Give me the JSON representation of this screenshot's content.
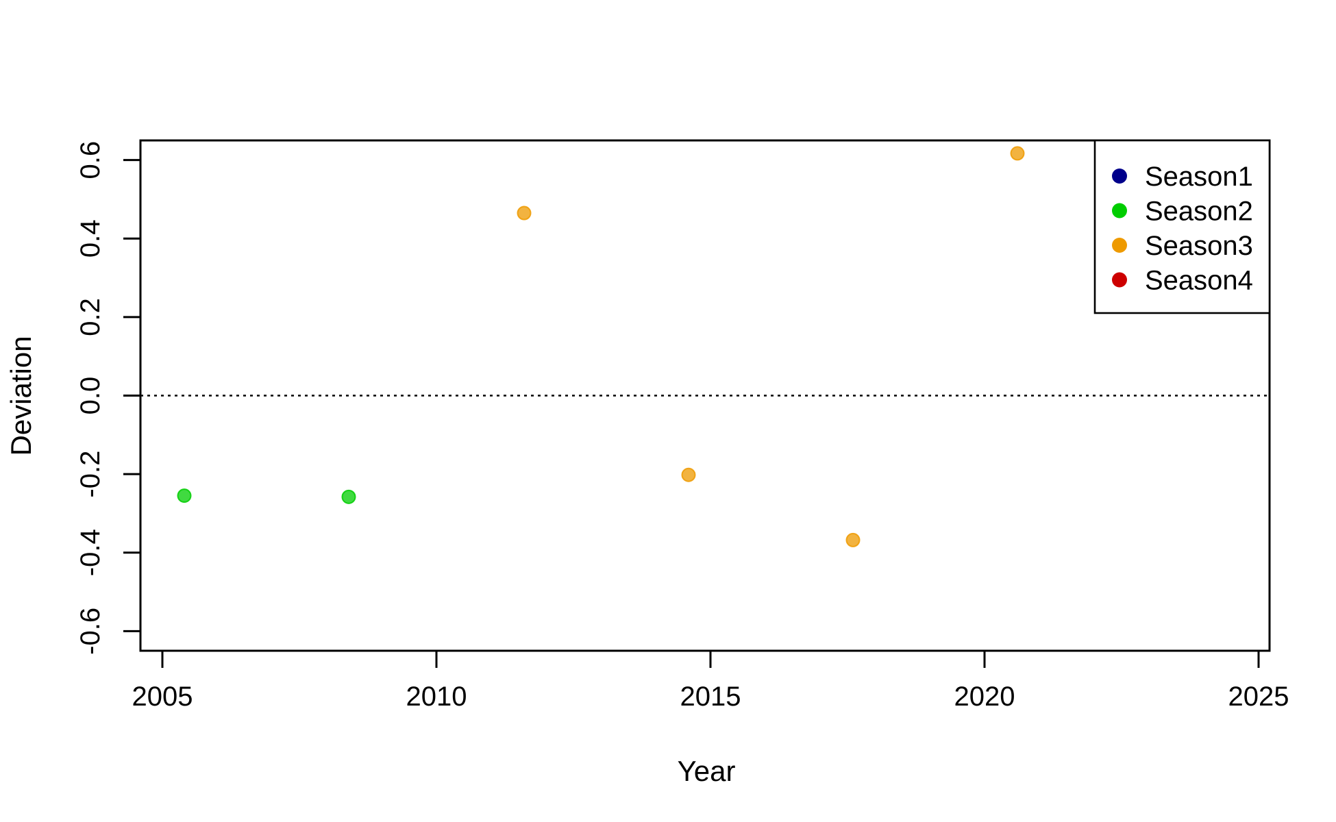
{
  "chart_data": {
    "type": "scatter",
    "title": "",
    "xlabel": "Year",
    "ylabel": "Deviation",
    "xlim": [
      2004.6,
      2025.2
    ],
    "ylim": [
      -0.65,
      0.65
    ],
    "x_ticks": [
      2005,
      2010,
      2015,
      2020,
      2025
    ],
    "x_tick_labels": [
      "2005",
      "2010",
      "2015",
      "2020",
      "2025"
    ],
    "y_ticks": [
      -0.6,
      -0.4,
      -0.2,
      0.0,
      0.2,
      0.4,
      0.6
    ],
    "y_tick_labels": [
      "-0.6",
      "-0.4",
      "-0.2",
      "0.0",
      "0.2",
      "0.4",
      "0.6"
    ],
    "reference_line": {
      "y": 0.0,
      "style": "dotted"
    },
    "grid": false,
    "legend_position": "top-right",
    "series": [
      {
        "name": "Season1",
        "color": "#00008B",
        "points": []
      },
      {
        "name": "Season2",
        "color": "#00CD00",
        "points": [
          {
            "x": 2005.4,
            "y": -0.255
          },
          {
            "x": 2008.4,
            "y": -0.258
          }
        ]
      },
      {
        "name": "Season3",
        "color": "#EE9A00",
        "points": [
          {
            "x": 2011.6,
            "y": 0.465
          },
          {
            "x": 2014.6,
            "y": -0.202
          },
          {
            "x": 2017.6,
            "y": -0.368
          },
          {
            "x": 2020.6,
            "y": 0.617
          }
        ]
      },
      {
        "name": "Season4",
        "color": "#CD0000",
        "points": []
      }
    ]
  }
}
